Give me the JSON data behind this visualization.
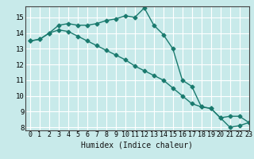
{
  "title": "",
  "xlabel": "Humidex (Indice chaleur)",
  "ylabel": "",
  "background_color": "#c8eaea",
  "grid_color": "#ffffff",
  "line_color": "#1a7a6e",
  "xlim": [
    -0.5,
    23
  ],
  "ylim": [
    7.8,
    15.7
  ],
  "yticks": [
    8,
    9,
    10,
    11,
    12,
    13,
    14,
    15
  ],
  "xticks": [
    0,
    1,
    2,
    3,
    4,
    5,
    6,
    7,
    8,
    9,
    10,
    11,
    12,
    13,
    14,
    15,
    16,
    17,
    18,
    19,
    20,
    21,
    22,
    23
  ],
  "line1_x": [
    0,
    1,
    2,
    3,
    4,
    5,
    6,
    7,
    8,
    9,
    10,
    11,
    12,
    13,
    14,
    15,
    16,
    17,
    18,
    19,
    20,
    21,
    22,
    23
  ],
  "line1_y": [
    13.5,
    13.6,
    14.0,
    14.5,
    14.6,
    14.5,
    14.5,
    14.6,
    14.8,
    14.9,
    15.1,
    15.0,
    15.6,
    14.5,
    13.9,
    13.0,
    11.0,
    10.6,
    9.3,
    9.2,
    8.6,
    8.0,
    8.1,
    8.3
  ],
  "line2_x": [
    0,
    1,
    2,
    3,
    4,
    5,
    6,
    7,
    8,
    9,
    10,
    11,
    12,
    13,
    14,
    15,
    16,
    17,
    18,
    19,
    20,
    21,
    22,
    23
  ],
  "line2_y": [
    13.5,
    13.6,
    14.0,
    14.2,
    14.1,
    13.8,
    13.5,
    13.2,
    12.9,
    12.6,
    12.3,
    11.9,
    11.6,
    11.3,
    11.0,
    10.5,
    10.0,
    9.5,
    9.3,
    9.2,
    8.6,
    8.7,
    8.7,
    8.3
  ],
  "marker": "D",
  "markersize": 2.5,
  "linewidth": 1.0,
  "xlabel_fontsize": 7,
  "tick_fontsize": 6
}
